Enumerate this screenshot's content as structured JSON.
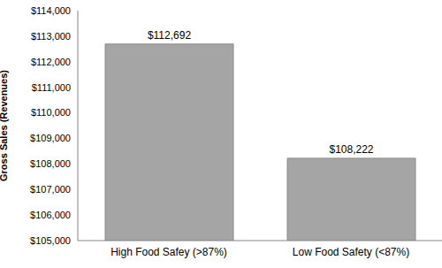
{
  "chart_data": {
    "type": "bar",
    "y_label": "Gross Sales (Revenues)",
    "categories": [
      "High Food Safey (>87%)",
      "Low Food Safety (<87%)"
    ],
    "values": [
      112692,
      108222
    ],
    "value_labels": [
      "$112,692",
      "$108,222"
    ],
    "color": "#a5a5a5",
    "ylim": [
      105000,
      114000
    ],
    "yticks": [
      {
        "value": 105000,
        "label": "$105,000"
      },
      {
        "value": 106000,
        "label": "$106,000"
      },
      {
        "value": 107000,
        "label": "$107,000"
      },
      {
        "value": 108000,
        "label": "$108,000"
      },
      {
        "value": 109000,
        "label": "$109,000"
      },
      {
        "value": 110000,
        "label": "$110,000"
      },
      {
        "value": 111000,
        "label": "$111,000"
      },
      {
        "value": 112000,
        "label": "$112,000"
      },
      {
        "value": 113000,
        "label": "$113,000"
      },
      {
        "value": 114000,
        "label": "$114,000"
      }
    ],
    "grid": false,
    "data_labels": true
  }
}
